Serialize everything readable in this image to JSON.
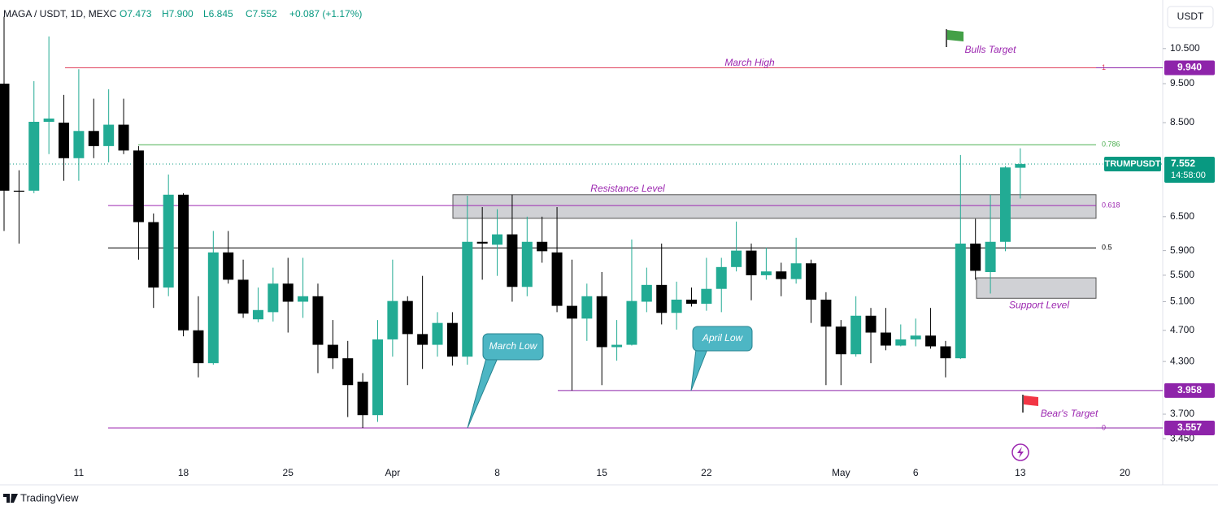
{
  "header": {
    "symbol": "MAGA / USDT, 1D, MEXC",
    "ohlc": [
      "O7.473",
      "H7.900",
      "L6.845",
      "C7.552",
      "+0.087 (+1.17%)"
    ]
  },
  "currency": "USDT",
  "brand": "TradingView",
  "chart_data": {
    "type": "candlestick",
    "log_scale": true,
    "grid": false,
    "up_color": "#22ab94",
    "down_color": "#000000",
    "categories": [
      null,
      null,
      null,
      null,
      null,
      "11",
      null,
      null,
      null,
      null,
      null,
      null,
      "18",
      null,
      null,
      null,
      null,
      null,
      null,
      "25",
      null,
      null,
      null,
      null,
      null,
      null,
      "Apr",
      null,
      null,
      null,
      null,
      null,
      null,
      "8",
      null,
      null,
      null,
      null,
      null,
      null,
      "15",
      null,
      null,
      null,
      null,
      null,
      null,
      "22",
      null,
      null,
      null,
      null,
      null,
      null,
      null,
      null,
      "May",
      null,
      null,
      null,
      null,
      "6",
      null,
      null,
      null,
      null,
      null,
      null,
      "13",
      null,
      null,
      null,
      null,
      null,
      null,
      "20",
      null,
      null
    ],
    "open": [
      9.5,
      7.0,
      7.0,
      8.52,
      8.5,
      7.68,
      8.3,
      7.95,
      8.45,
      7.85,
      6.4,
      5.31,
      6.92,
      4.7,
      4.28,
      5.87,
      5.43,
      4.85,
      4.95,
      5.37,
      5.1,
      5.18,
      4.51,
      4.34,
      4.06,
      3.69,
      4.58,
      5.11,
      4.65,
      4.51,
      4.8,
      4.36,
      6.05,
      6.0,
      6.18,
      5.32,
      6.05,
      5.87,
      5.04,
      4.86,
      5.18,
      4.48,
      4.51,
      5.1,
      5.35,
      4.94,
      5.13,
      5.07,
      5.29,
      5.63,
      5.9,
      5.5,
      5.56,
      5.44,
      5.69,
      5.13,
      4.75,
      4.39,
      4.9,
      4.67,
      4.5,
      4.58,
      4.63,
      4.49,
      4.34,
      6.02,
      5.55,
      6.05,
      7.473,
      null,
      null,
      null,
      null,
      null,
      null,
      null,
      null,
      null
    ],
    "high": [
      11.5,
      7.42,
      9.57,
      10.87,
      9.2,
      9.9,
      9.1,
      9.35,
      9.1,
      7.95,
      6.56,
      7.33,
      6.95,
      5.18,
      6.24,
      6.24,
      5.75,
      5.31,
      5.62,
      5.78,
      5.78,
      5.37,
      4.84,
      4.56,
      4.16,
      4.84,
      5.75,
      5.18,
      5.49,
      4.95,
      4.95,
      6.9,
      6.68,
      6.64,
      6.92,
      6.5,
      6.5,
      6.68,
      5.75,
      5.37,
      5.55,
      4.84,
      6.09,
      5.62,
      6.02,
      5.4,
      5.31,
      5.78,
      5.78,
      6.41,
      6.02,
      5.95,
      5.7,
      6.12,
      5.75,
      5.24,
      4.84,
      5.18,
      5.01,
      5.01,
      4.78,
      4.86,
      5.01,
      4.56,
      7.75,
      6.46,
      6.92,
      7.51,
      7.9,
      null,
      null,
      null,
      null,
      null,
      null,
      null,
      null,
      null
    ],
    "low": [
      6.24,
      6.02,
      6.95,
      7.77,
      7.2,
      7.2,
      7.68,
      7.59,
      7.77,
      5.75,
      5.01,
      5.18,
      4.62,
      4.11,
      4.26,
      5.37,
      4.87,
      4.81,
      4.82,
      4.67,
      4.87,
      4.16,
      4.21,
      3.67,
      3.557,
      3.62,
      4.36,
      4.02,
      4.21,
      4.36,
      4.25,
      4.26,
      5.43,
      5.49,
      5.1,
      5.18,
      5.7,
      4.95,
      3.958,
      4.56,
      4.02,
      4.31,
      4.5,
      4.95,
      4.78,
      4.71,
      5.03,
      4.97,
      4.95,
      5.56,
      5.12,
      5.43,
      5.18,
      5.37,
      4.8,
      4.02,
      4.02,
      4.36,
      4.28,
      4.44,
      4.49,
      4.49,
      4.46,
      4.11,
      4.33,
      5.43,
      5.22,
      5.89,
      6.845,
      null,
      null,
      null,
      null,
      null,
      null,
      null,
      null,
      null
    ],
    "close": [
      7.0,
      6.98,
      8.52,
      8.6,
      7.68,
      8.3,
      7.95,
      8.45,
      7.85,
      6.4,
      5.31,
      6.92,
      4.7,
      4.28,
      5.87,
      5.43,
      4.93,
      4.98,
      5.37,
      5.1,
      5.18,
      4.51,
      4.34,
      4.02,
      3.69,
      4.58,
      5.11,
      4.65,
      4.51,
      4.8,
      4.36,
      6.05,
      6.02,
      6.18,
      5.32,
      6.05,
      5.89,
      5.04,
      4.86,
      5.18,
      4.48,
      4.51,
      5.11,
      5.35,
      4.94,
      5.13,
      5.07,
      5.29,
      5.63,
      5.9,
      5.5,
      5.56,
      5.44,
      5.69,
      5.13,
      4.75,
      4.39,
      4.9,
      4.67,
      4.5,
      4.58,
      4.63,
      4.49,
      4.34,
      6.02,
      5.57,
      6.05,
      7.48,
      7.552,
      null,
      null,
      null,
      null,
      null,
      null,
      null,
      null,
      null
    ],
    "ylim": [
      3.22,
      12.06
    ],
    "yticks": [
      {
        "value": 10.5,
        "label": "10.500"
      },
      {
        "value": 9.5,
        "label": "9.500"
      },
      {
        "value": 8.5,
        "label": "8.500"
      },
      {
        "value": 6.5,
        "label": "6.500"
      },
      {
        "value": 5.9,
        "label": "5.900"
      },
      {
        "value": 5.5,
        "label": "5.500"
      },
      {
        "value": 5.1,
        "label": "5.100"
      },
      {
        "value": 4.7,
        "label": "4.700"
      },
      {
        "value": 4.3,
        "label": "4.300"
      },
      {
        "value": 3.7,
        "label": "3.700"
      },
      {
        "value": 3.45,
        "label": "3.450"
      }
    ],
    "fib": [
      {
        "label": "1",
        "value": 9.94,
        "color": "#e0435e"
      },
      {
        "label": "0.786",
        "value": 7.98,
        "color": "#4caf50"
      },
      {
        "label": "0.618",
        "value": 6.71,
        "color": "#9c27b0"
      },
      {
        "label": "0.5",
        "value": 5.946,
        "color": "#000000"
      },
      {
        "label": "0",
        "value": 3.557,
        "color": "#9c27b0"
      }
    ],
    "price_tags": [
      {
        "value": 9.94,
        "label": "9.940",
        "color": "#8e24aa"
      },
      {
        "value": 3.958,
        "label": "3.958",
        "color": "#8e24aa"
      },
      {
        "value": 3.557,
        "label": "3.557",
        "color": "#8e24aa"
      }
    ],
    "current": {
      "name": "TRUMPUSDT",
      "value": 7.552,
      "label": "7.552",
      "countdown": "14:58:00",
      "color": "#089981"
    },
    "zones": [
      {
        "name": "Resistance Level",
        "low": 6.47,
        "high": 6.92
      },
      {
        "name": "Support Level",
        "low": 5.15,
        "high": 5.46
      }
    ],
    "annotations": [
      "March High",
      "Bulls Target",
      "Bear's Target"
    ],
    "callouts": [
      "March Low",
      "April Low"
    ]
  }
}
